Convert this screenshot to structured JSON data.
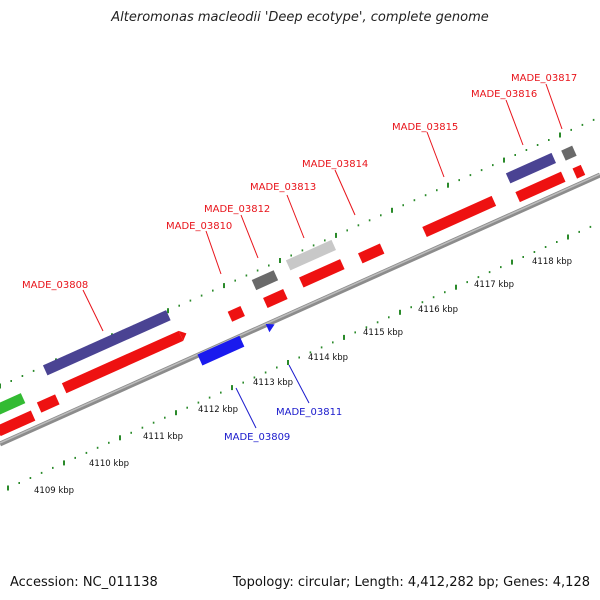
{
  "title": "Alteromonas macleodii 'Deep ecotype', complete genome",
  "footer": {
    "accession": "Accession: NC_011138",
    "summary": "Topology: circular; Length: 4,412,282 bp; Genes: 4,128"
  },
  "colors": {
    "label_forward": "#e8141b",
    "label_reverse": "#1a1acc",
    "backbone": "#8c8c8c",
    "tick": "#2a8a2a",
    "cds_red": "#ee1111",
    "cds_purple": "#4a4393",
    "cds_blue": "#1a1aee",
    "cds_green": "#33bb33",
    "cds_darkgray": "#6a6a6a",
    "cds_lightgray": "#c8c8c8"
  },
  "kbp_labels": [
    "4109 kbp",
    "4110 kbp",
    "4111 kbp",
    "4112 kbp",
    "4113 kbp",
    "4114 kbp",
    "4115 kbp",
    "4116 kbp",
    "4117 kbp",
    "4118 kbp"
  ],
  "gene_labels": [
    {
      "text": "MADE_03808",
      "strand": "forward"
    },
    {
      "text": "MADE_03810",
      "strand": "forward"
    },
    {
      "text": "MADE_03812",
      "strand": "forward"
    },
    {
      "text": "MADE_03813",
      "strand": "forward"
    },
    {
      "text": "MADE_03814",
      "strand": "forward"
    },
    {
      "text": "MADE_03815",
      "strand": "forward"
    },
    {
      "text": "MADE_03816",
      "strand": "forward"
    },
    {
      "text": "MADE_03817",
      "strand": "forward"
    },
    {
      "text": "MADE_03809",
      "strand": "reverse"
    },
    {
      "text": "MADE_03811",
      "strand": "reverse"
    }
  ]
}
